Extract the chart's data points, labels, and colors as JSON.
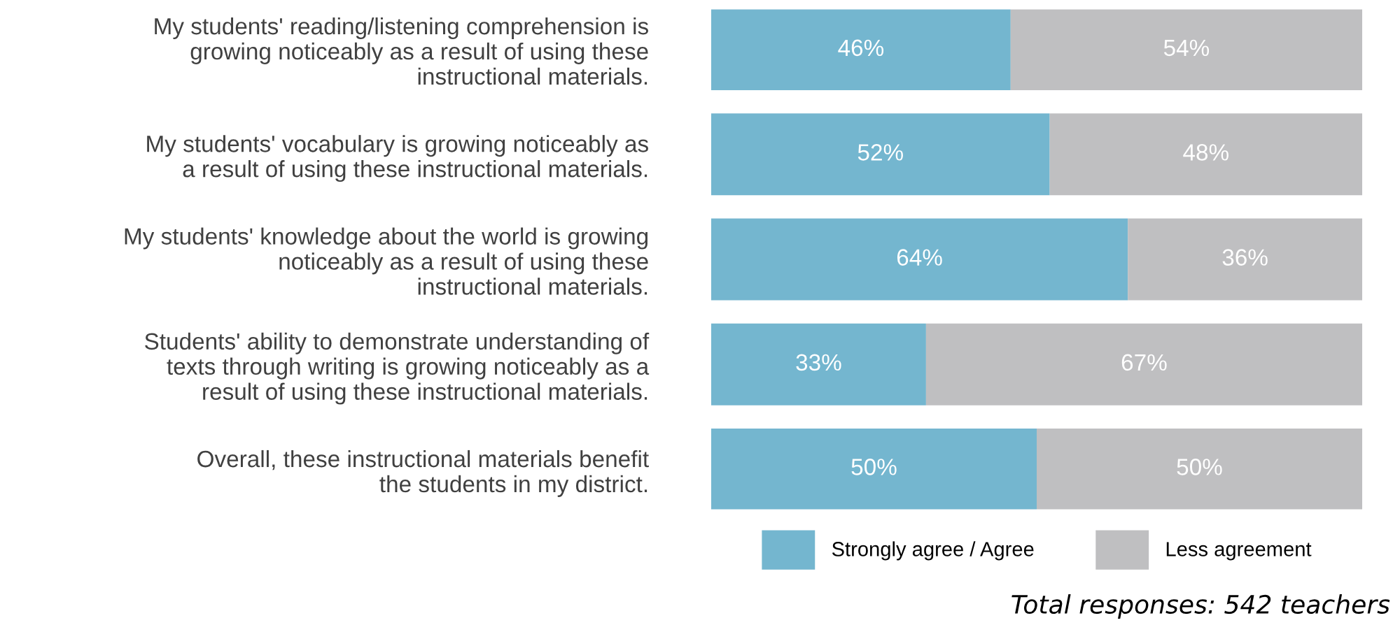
{
  "chart_data": {
    "type": "bar",
    "orientation": "horizontal",
    "stacked": true,
    "legend": "bottom",
    "grid": false,
    "categories": [
      "My students' reading/listening comprehension is\ngrowing noticeably as a result of using these\ninstructional materials.",
      "My students' vocabulary is growing noticeably as\na result of using these instructional materials.",
      "My students' knowledge about the world is growing\nnoticeably as a result of using these\ninstructional materials.",
      "Students' ability to demonstrate understanding of\ntexts through writing is growing noticeably as a\nresult of using these instructional materials.",
      "Overall, these instructional materials benefit\nthe students in my district."
    ],
    "series": [
      {
        "name": "Strongly agree / Agree",
        "color": "#74b6cf",
        "values": [
          46,
          52,
          64,
          33,
          50
        ],
        "value_labels": [
          "46%",
          "52%",
          "64%",
          "33%",
          "50%"
        ]
      },
      {
        "name": "Less agreement",
        "color": "#bfbfc1",
        "values": [
          54,
          48,
          36,
          67,
          50
        ],
        "value_labels": [
          "54%",
          "48%",
          "36%",
          "67%",
          "50%"
        ]
      }
    ],
    "annotations": [
      "Total responses: 542 teachers"
    ]
  }
}
